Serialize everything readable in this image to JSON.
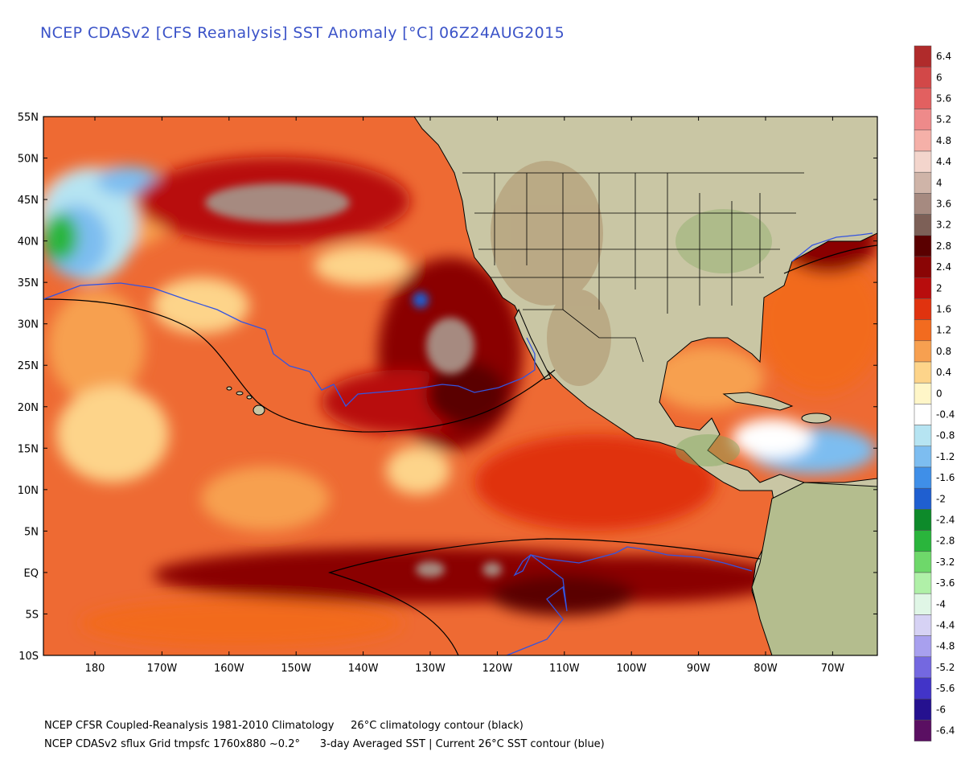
{
  "title": "NCEP CDASv2 [CFS Reanalysis] SST Anomaly [°C] 06Z24AUG2015",
  "lat_labels": [
    "55N",
    "50N",
    "45N",
    "40N",
    "35N",
    "30N",
    "25N",
    "20N",
    "15N",
    "10N",
    "5N",
    "EQ",
    "5S",
    "10S"
  ],
  "lon_labels": [
    "180",
    "170W",
    "160W",
    "150W",
    "140W",
    "130W",
    "120W",
    "110W",
    "100W",
    "90W",
    "80W",
    "70W"
  ],
  "colorbar": {
    "labels": [
      "6.4",
      "6",
      "5.6",
      "5.2",
      "4.8",
      "4.4",
      "4",
      "3.6",
      "3.2",
      "2.8",
      "2.4",
      "2",
      "1.6",
      "1.2",
      "0.8",
      "0.4",
      "0",
      "-0.4",
      "-0.8",
      "-1.2",
      "-1.6",
      "-2",
      "-2.4",
      "-2.8",
      "-3.2",
      "-3.6",
      "-4",
      "-4.4",
      "-4.8",
      "-5.2",
      "-5.6",
      "-6",
      "-6.4"
    ],
    "colors": [
      "#b02b2b",
      "#d24848",
      "#e26060",
      "#ee8a8a",
      "#f5b0a8",
      "#f3d5cc",
      "#cfb4a8",
      "#a68a80",
      "#7d6057",
      "#5a0000",
      "#8a0505",
      "#b80d0d",
      "#e0330f",
      "#f26b1f",
      "#f7a050",
      "#fdd48a",
      "#fff6c8",
      "#ffffff",
      "#b6e4f2",
      "#7dbdf0",
      "#3f8fe8",
      "#1f5fd0",
      "#0d8a2a",
      "#2ab53c",
      "#6ed86a",
      "#b0f0a8",
      "#e0f6e6",
      "#d6d2f4",
      "#a8a0ee",
      "#7468e0",
      "#4234c8",
      "#25118f",
      "#5a0f62"
    ]
  },
  "footer": {
    "line1": "NCEP CFSR Coupled-Reanalysis 1981-2010 Climatology     26°C climatology contour (black)",
    "line2": "NCEP CDASv2 sflux Grid tmpsfc 1760x880 ~0.2°      3-day Averaged SST | Current 26°C SST contour (blue)"
  },
  "colors": {
    "title": "#3b53c8",
    "land": "#c9c6a4",
    "ocean_base": "#ee6a33",
    "climatology_contour": "#000000",
    "current_contour": "#3454e0"
  }
}
